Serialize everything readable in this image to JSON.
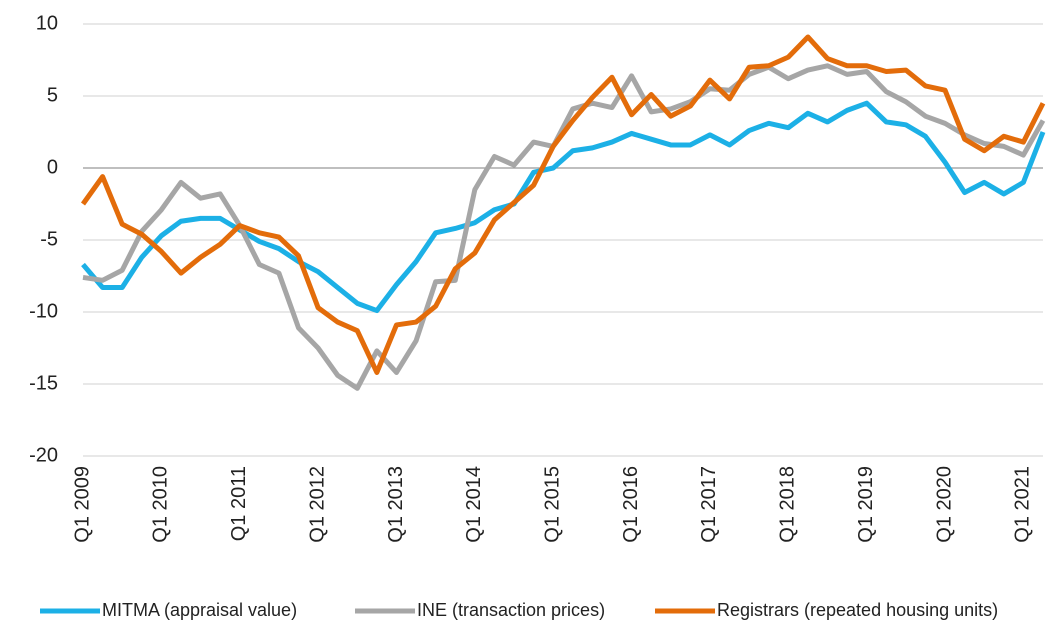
{
  "chart_data": {
    "type": "line",
    "categories": [
      "Q1 2009",
      null,
      null,
      null,
      "Q1 2010",
      null,
      null,
      null,
      "Q1 2011",
      null,
      null,
      null,
      "Q1 2012",
      null,
      null,
      null,
      "Q1 2013",
      null,
      null,
      null,
      "Q1 2014",
      null,
      null,
      null,
      "Q1 2015",
      null,
      null,
      null,
      "Q1 2016",
      null,
      null,
      null,
      "Q1 2017",
      null,
      null,
      null,
      "Q1 2018",
      null,
      null,
      null,
      "Q1 2019",
      null,
      null,
      null,
      "Q1 2020",
      null,
      null,
      null,
      "Q1 2021",
      null
    ],
    "series": [
      {
        "name": "MITMA (appraisal value)",
        "color": "#1cb0e6",
        "values": [
          -6.7,
          -8.3,
          -8.3,
          -6.2,
          -4.7,
          -3.7,
          -3.5,
          -3.5,
          -4.3,
          -5.1,
          -5.6,
          -6.5,
          -7.2,
          -8.3,
          -9.4,
          -9.9,
          -8.1,
          -6.5,
          -4.5,
          -4.2,
          -3.8,
          -2.9,
          -2.5,
          -0.3,
          0,
          1.2,
          1.4,
          1.8,
          2.4,
          2.0,
          1.6,
          1.6,
          2.3,
          1.6,
          2.6,
          3.1,
          2.8,
          3.8,
          3.2,
          4.0,
          4.5,
          3.2,
          3.0,
          2.2,
          0.4,
          -1.7,
          -1.0,
          -1.8,
          -1.0,
          2.5
        ]
      },
      {
        "name": "INE (transaction prices)",
        "color": "#a6a6a6",
        "values": [
          -7.6,
          -7.8,
          -7.1,
          -4.4,
          -2.9,
          -1.0,
          -2.1,
          -1.8,
          -4.0,
          -6.7,
          -7.3,
          -11.1,
          -12.5,
          -14.4,
          -15.3,
          -12.7,
          -14.2,
          -12.0,
          -7.9,
          -7.8,
          -1.5,
          0.8,
          0.2,
          1.8,
          1.5,
          4.1,
          4.5,
          4.2,
          6.4,
          3.9,
          4.1,
          4.6,
          5.5,
          5.4,
          6.5,
          7.0,
          6.2,
          6.8,
          7.1,
          6.5,
          6.7,
          5.3,
          4.6,
          3.6,
          3.1,
          2.3,
          1.7,
          1.5,
          0.9,
          3.3
        ]
      },
      {
        "name": "Registrars (repeated housing units)",
        "color": "#e36c0a",
        "values": [
          -2.5,
          -0.6,
          -3.9,
          -4.6,
          -5.8,
          -7.3,
          -6.2,
          -5.3,
          -4.0,
          -4.5,
          -4.8,
          -6.1,
          -9.7,
          -10.7,
          -11.3,
          -14.2,
          -10.9,
          -10.7,
          -9.6,
          -7.0,
          -5.9,
          -3.6,
          -2.4,
          -1.2,
          1.5,
          3.3,
          4.9,
          6.3,
          3.7,
          5.1,
          3.6,
          4.3,
          6.1,
          4.8,
          7.0,
          7.1,
          7.7,
          9.1,
          7.6,
          7.1,
          7.1,
          6.7,
          6.8,
          5.7,
          5.4,
          2.0,
          1.2,
          2.2,
          1.8,
          4.5
        ]
      }
    ],
    "ylim": [
      -20,
      10
    ],
    "yticks": [
      -20,
      -15,
      -10,
      -5,
      0,
      5,
      10
    ],
    "grid": true
  }
}
